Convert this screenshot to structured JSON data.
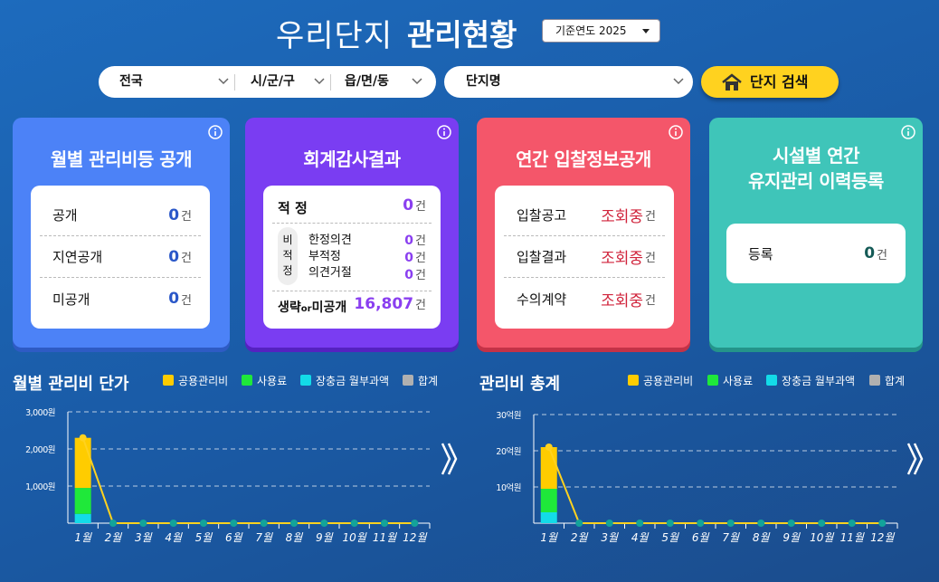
{
  "header": {
    "title_light": "우리단지",
    "title_bold": "관리현황",
    "year_select": "기준연도 2025"
  },
  "filters": {
    "region": "전국",
    "city": "시/군/구",
    "town": "읍/면/동",
    "complex_name": "단지명",
    "search_button": "단지 검색"
  },
  "unit": "건",
  "cards": [
    {
      "title": "월별 관리비등 공개",
      "rows": [
        {
          "label": "공개",
          "value": "0"
        },
        {
          "label": "지연공개",
          "value": "0"
        },
        {
          "label": "미공개",
          "value": "0"
        }
      ]
    },
    {
      "title": "회계감사결과",
      "rows": [
        {
          "label": "적 정",
          "value": "0"
        }
      ],
      "group": {
        "label": "비적정",
        "rows": [
          {
            "label": "한정의견",
            "value": "0"
          },
          {
            "label": "부적정",
            "value": "0"
          },
          {
            "label": "의견거절",
            "value": "0"
          }
        ]
      },
      "footer": {
        "label_main": "생략",
        "label_small": "or",
        "label_end": "미공개",
        "value": "16,807"
      }
    },
    {
      "title": "연간 입찰정보공개",
      "rows": [
        {
          "label": "입찰공고",
          "value": "조회중"
        },
        {
          "label": "입찰결과",
          "value": "조회중"
        },
        {
          "label": "수의계약",
          "value": "조회중"
        }
      ]
    },
    {
      "title_lines": [
        "시설별 연간",
        "유지관리 이력등록"
      ],
      "rows": [
        {
          "label": "등록",
          "value": "0"
        }
      ]
    }
  ],
  "chart_data": [
    {
      "type": "bar",
      "title": "월별 관리비 단가",
      "stacked": true,
      "categories": [
        "1월",
        "2월",
        "3월",
        "4월",
        "5월",
        "6월",
        "7월",
        "8월",
        "9월",
        "10월",
        "11월",
        "12월"
      ],
      "series": [
        {
          "name": "공용관리비",
          "color": "#ffcc00",
          "values": [
            1350,
            0,
            0,
            0,
            0,
            0,
            0,
            0,
            0,
            0,
            0,
            0
          ]
        },
        {
          "name": "사용료",
          "color": "#1fe83a",
          "values": [
            700,
            0,
            0,
            0,
            0,
            0,
            0,
            0,
            0,
            0,
            0,
            0
          ]
        },
        {
          "name": "장충금 월부과액",
          "color": "#13dbe8",
          "values": [
            250,
            0,
            0,
            0,
            0,
            0,
            0,
            0,
            0,
            0,
            0,
            0
          ]
        },
        {
          "name": "합계",
          "color": "#b0b0b0",
          "type": "line",
          "values": [
            2300,
            0,
            0,
            0,
            0,
            0,
            0,
            0,
            0,
            0,
            0,
            0
          ]
        }
      ],
      "ylim": [
        0,
        3000
      ],
      "yticks": [
        {
          "value": 1000,
          "label": "1,000원"
        },
        {
          "value": 2000,
          "label": "2,000원"
        },
        {
          "value": 3000,
          "label": "3,000원"
        }
      ],
      "grid": true
    },
    {
      "type": "bar",
      "title": "관리비 총계",
      "stacked": true,
      "categories": [
        "1월",
        "2월",
        "3월",
        "4월",
        "5월",
        "6월",
        "7월",
        "8월",
        "9월",
        "10월",
        "11월",
        "12월"
      ],
      "series": [
        {
          "name": "공용관리비",
          "color": "#ffcc00",
          "values": [
            11.5,
            0,
            0,
            0,
            0,
            0,
            0,
            0,
            0,
            0,
            0,
            0
          ]
        },
        {
          "name": "사용료",
          "color": "#1fe83a",
          "values": [
            6.5,
            0,
            0,
            0,
            0,
            0,
            0,
            0,
            0,
            0,
            0,
            0
          ]
        },
        {
          "name": "장충금 월부과액",
          "color": "#13dbe8",
          "values": [
            3,
            0,
            0,
            0,
            0,
            0,
            0,
            0,
            0,
            0,
            0,
            0
          ]
        },
        {
          "name": "합계",
          "color": "#b0b0b0",
          "type": "line",
          "values": [
            21,
            0,
            0,
            0,
            0,
            0,
            0,
            0,
            0,
            0,
            0,
            0
          ]
        }
      ],
      "ylim": [
        0,
        30
      ],
      "yticks": [
        {
          "value": 10,
          "label": "10억원"
        },
        {
          "value": 20,
          "label": "20억원"
        },
        {
          "value": 30,
          "label": "30억원"
        }
      ],
      "grid": true
    }
  ]
}
